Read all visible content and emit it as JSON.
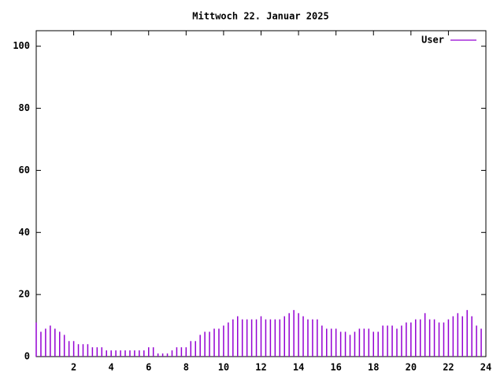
{
  "chart_data": {
    "type": "impulses",
    "title": "Mittwoch 22. Januar 2025",
    "x": [
      0,
      0.25,
      0.5,
      0.75,
      1,
      1.25,
      1.5,
      1.75,
      2,
      2.25,
      2.5,
      2.75,
      3,
      3.25,
      3.5,
      3.75,
      4,
      4.25,
      4.5,
      4.75,
      5,
      5.25,
      5.5,
      5.75,
      6,
      6.25,
      6.5,
      6.75,
      7,
      7.25,
      7.5,
      7.75,
      8,
      8.25,
      8.5,
      8.75,
      9,
      9.25,
      9.5,
      9.75,
      10,
      10.25,
      10.5,
      10.75,
      11,
      11.25,
      11.5,
      11.75,
      12,
      12.25,
      12.5,
      12.75,
      13,
      13.25,
      13.5,
      13.75,
      14,
      14.25,
      14.5,
      14.75,
      15,
      15.25,
      15.5,
      15.75,
      16,
      16.25,
      16.5,
      16.75,
      17,
      17.25,
      17.5,
      17.75,
      18,
      18.25,
      18.5,
      18.75,
      19,
      19.25,
      19.5,
      19.75,
      20,
      20.25,
      20.5,
      20.75,
      21,
      21.25,
      21.5,
      21.75,
      22,
      22.25,
      22.5,
      22.75,
      23,
      23.25,
      23.5,
      23.75
    ],
    "series": [
      {
        "name": "User",
        "color": "#9400d3",
        "values": [
          11,
          8,
          9,
          10,
          9,
          8,
          7,
          5,
          5,
          4,
          4,
          4,
          3,
          3,
          3,
          2,
          2,
          2,
          2,
          2,
          2,
          2,
          2,
          2,
          3,
          3,
          1,
          1,
          1,
          2,
          3,
          3,
          3,
          5,
          5,
          7,
          8,
          8,
          9,
          9,
          10,
          11,
          12,
          13,
          12,
          12,
          12,
          12,
          13,
          12,
          12,
          12,
          12,
          13,
          14,
          15,
          14,
          13,
          12,
          12,
          12,
          10,
          9,
          9,
          9,
          8,
          8,
          7,
          8,
          9,
          9,
          9,
          8,
          8,
          10,
          10,
          10,
          9,
          10,
          11,
          11,
          12,
          12,
          14,
          12,
          12,
          11,
          11,
          12,
          13,
          14,
          13,
          15,
          13,
          10,
          9
        ]
      }
    ],
    "xlim": [
      0,
      24
    ],
    "xticks": [
      2,
      4,
      6,
      8,
      10,
      12,
      14,
      16,
      18,
      20,
      22,
      24
    ],
    "ylim": [
      0,
      105
    ],
    "yticks": [
      0,
      20,
      40,
      60,
      80,
      100
    ],
    "grid": false,
    "legend": "top-right"
  }
}
